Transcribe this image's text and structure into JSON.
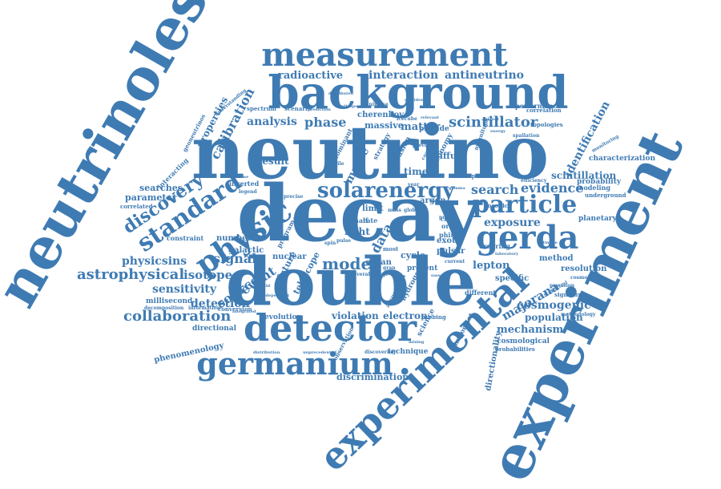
{
  "colors": {
    "word": "#3f7bb3",
    "background": "#ffffff"
  },
  "words": {
    "neutrino": "neutrino",
    "decay": "decay",
    "double": "double",
    "detector": "detector",
    "background": "background",
    "neutrinoless": "neutrinoless",
    "experiment": "experiment",
    "experimental": "experimental",
    "measurement": "measurement",
    "germanium": "germanium",
    "gerda": "gerda",
    "particle": "particle",
    "solarenergy": "solarenergy",
    "standard": "standard",
    "physic": "physic",
    "discovery": "discovery",
    "model": "model",
    "collaboration": "collaboration",
    "astrophysical": "astrophysical",
    "physicsins": "physicsins",
    "scintillator": "scintillator",
    "search": "search",
    "evidence": "evidence",
    "exposure": "exposure",
    "signal": "signal",
    "isotope": "isotope",
    "sensitivity": "sensitivity",
    "detection": "detection",
    "radioactive": "radioactive",
    "interaction": "interaction",
    "antineutrino": "antineutrino",
    "analysis": "analysis",
    "phase": "phase",
    "calibration": "calibration",
    "properties": "properties",
    "result": "result",
    "cherenkov": "cherenkov",
    "massive": "massive",
    "matter": "matter",
    "provide": "provide",
    "scintillation": "scintillation",
    "identification": "identification",
    "probability": "probability",
    "characterization": "characterization",
    "planetary": "planetary",
    "resolution": "resolution",
    "method": "method",
    "lepton": "lepton",
    "specific": "specific",
    "cosmogenic": "cosmogenic",
    "population": "population",
    "mechanism": "mechanism",
    "cosmological": "cosmological",
    "probabilities": "probabilities",
    "majorana": "majorana",
    "discrimination": "discrimination",
    "technique": "technique",
    "electron": "electron",
    "violation": "violation",
    "evolution": "evolution",
    "directional": "directional",
    "phenomenology": "phenomenology",
    "millisecond": "millisecond",
    "decomposition": "decomposition",
    "information": "information",
    "conversion": "conversion",
    "source": "source",
    "event": "event",
    "galactic": "galactic",
    "number": "number",
    "constraint": "constraint",
    "searches": "searches",
    "parameter": "parameter",
    "correlated": "correlated",
    "interacting": "interacting",
    "inverted": "inverted",
    "time": "time",
    "limit": "limit",
    "argon": "argon",
    "light": "light",
    "data": "data",
    "program": "program",
    "masse": "masse",
    "astronomy": "astronomy",
    "diffuse": "diffuse",
    "ordering": "ordering",
    "exotic": "exotic",
    "pulsar": "pulsar",
    "cycle": "cycle",
    "ocean": "ocean",
    "nuclear": "nuclear",
    "future": "future",
    "telescope": "telescope",
    "hydrogen": "hydrogen",
    "most": "most",
    "present": "present",
    "science": "science",
    "different": "different",
    "bosonic": "bosonic",
    "chain": "chain",
    "order": "order",
    "purity": "purity",
    "phim": "phim",
    "spectrum": "spectrum",
    "scenario": "scenario",
    "universe": "universe",
    "icecube": "icecube",
    "performance": "performance",
    "correlation": "correlation",
    "topologies": "topologies",
    "spallation": "spallation",
    "modeling": "modeling",
    "underground": "underground",
    "monitoring": "monitoring",
    "statistical": "statistical",
    "signature": "signature",
    "methodology": "methodology",
    "cosmology": "cosmology",
    "precision": "precision",
    "directionality": "directionality",
    "important": "important",
    "probing": "probing",
    "discovering": "discovering",
    "assumption": "assumption",
    "observation": "observation",
    "legend": "legend",
    "precise": "precise",
    "geoneutrinos": "geoneutrinos",
    "understanding": "understanding",
    "fusion": "fusion",
    "current": "current",
    "rate": "rate",
    "half": "half",
    "shape": "shape",
    "efficiency": "efficiency",
    "distribution": "distribution",
    "unprecedented": "unprecedented",
    "independent": "independent",
    "charge": "charge",
    "several": "several",
    "global": "global",
    "mass": "mass",
    "spin": "spin",
    "year": "year",
    "distributed": "distributed",
    "proc": "proc",
    "pulse": "pulse",
    "laboratory": "laboratory",
    "ultimate": "ultimate",
    "mixing": "mixing",
    "sterile": "sterile",
    "dominant": "dominant",
    "strategy": "strategy",
    "coaxial": "coaxial",
    "volume": "volume",
    "integrated": "integrated",
    "prediction": "prediction",
    "confidence": "confidence",
    "ultrapure": "ultrapure",
    "relevant": "relevant",
    "previous": "previous",
    "planet": "planet",
    "magnitude": "magnitude",
    "gran": "gran",
    "sasso": "sasso",
    "energy": "energy",
    "sun": "sun",
    "field": "field",
    "gamma": "gamma"
  }
}
